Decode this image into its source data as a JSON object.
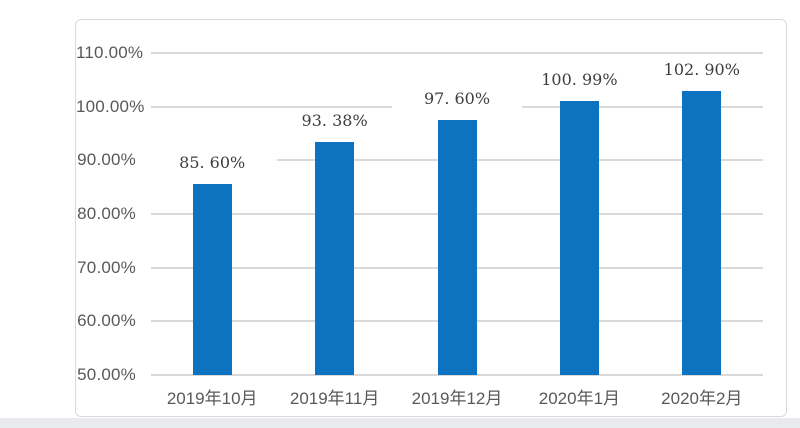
{
  "page": {
    "background_color": "#ffffff",
    "bottom_strip_color": "#e9eaee",
    "card_border_color": "#d9d9d9",
    "card_background_color": "#ffffff"
  },
  "chart_data": {
    "type": "bar",
    "title": "",
    "xlabel": "",
    "ylabel": "",
    "categories": [
      "2019年10月",
      "2019年11月",
      "2019年12月",
      "2020年1月",
      "2020年2月"
    ],
    "values": [
      85.6,
      93.38,
      97.6,
      100.99,
      102.9
    ],
    "data_labels": [
      "85. 60%",
      "93. 38%",
      "97. 60%",
      "100. 99%",
      "102. 90%"
    ],
    "y_ticks": [
      {
        "value": 110,
        "label": "110.00%"
      },
      {
        "value": 100,
        "label": "100.00%"
      },
      {
        "value": 90,
        "label": "90.00%"
      },
      {
        "value": 80,
        "label": "80.00%"
      },
      {
        "value": 70,
        "label": "70.00%"
      },
      {
        "value": 60,
        "label": "60.00%"
      },
      {
        "value": 50,
        "label": "50.00%"
      }
    ],
    "ylim": [
      50,
      110
    ],
    "grid": "horizontal",
    "legend": "none",
    "bar_color": "#0d72bf",
    "gridline_color": "#d9d9d9",
    "axis_text_color": "#595959",
    "data_label_color": "#3d3d3d"
  }
}
